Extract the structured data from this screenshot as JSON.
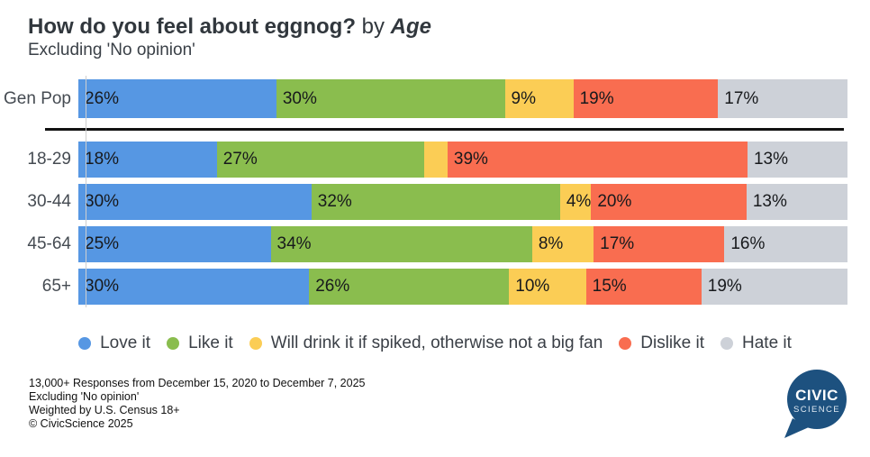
{
  "header": {
    "title_bold": "How do you feel about eggnog?",
    "title_mid": " by ",
    "title_emph": "Age",
    "subtitle": "Excluding 'No opinion'"
  },
  "chart_data": {
    "type": "bar",
    "stacked": true,
    "orientation": "horizontal",
    "unit": "%",
    "xlim": [
      0,
      100
    ],
    "legend_position": "bottom",
    "grid": false,
    "title": "How do you feel about eggnog? by Age",
    "subtitle": "Excluding 'No opinion'",
    "categories": [
      "Gen Pop",
      "18-29",
      "30-44",
      "45-64",
      "65+"
    ],
    "series": [
      {
        "name": "Love it",
        "color": "#5697e3",
        "values": [
          26,
          18,
          30,
          25,
          30
        ]
      },
      {
        "name": "Like it",
        "color": "#8abd4e",
        "values": [
          30,
          27,
          32,
          34,
          26
        ]
      },
      {
        "name": "Will drink it if spiked, otherwise not a big fan",
        "color": "#fbcd55",
        "values": [
          9,
          3,
          4,
          8,
          10
        ]
      },
      {
        "name": "Dislike it",
        "color": "#f96d50",
        "values": [
          19,
          39,
          20,
          17,
          15
        ]
      },
      {
        "name": "Hate it",
        "color": "#cdd1d8",
        "values": [
          17,
          13,
          13,
          16,
          19
        ]
      }
    ],
    "display_labels": [
      [
        "26%",
        "30%",
        "9%",
        "19%",
        "17%"
      ],
      [
        "18%",
        "27%",
        "",
        "39%",
        "13%"
      ],
      [
        "30%",
        "32%",
        "4%",
        "20%",
        "13%"
      ],
      [
        "25%",
        "34%",
        "8%",
        "17%",
        "16%"
      ],
      [
        "30%",
        "26%",
        "10%",
        "15%",
        "19%"
      ]
    ]
  },
  "footer": {
    "lines": [
      "13,000+ Responses from December 15, 2020 to December 7, 2025",
      "Excluding 'No opinion'",
      "Weighted by U.S. Census 18+",
      "© CivicScience 2025"
    ]
  },
  "logo": {
    "top": "CIVIC",
    "bottom": "SCIENCE",
    "color": "#1d517f"
  }
}
